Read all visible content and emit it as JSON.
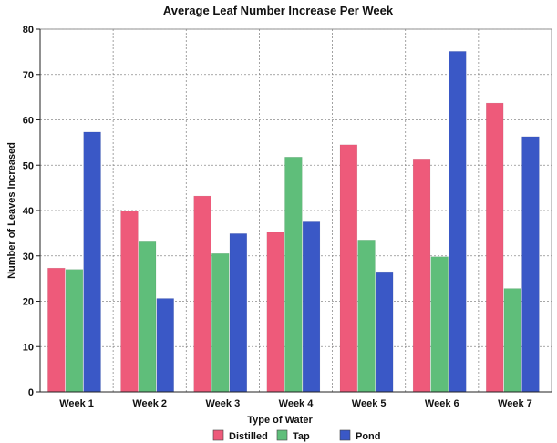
{
  "chart_data": {
    "type": "bar",
    "title": "Average Leaf Number Increase Per Week",
    "xlabel": "Type of Water",
    "ylabel": "Number of Leaves Increased",
    "categories": [
      "Week 1",
      "Week 2",
      "Week 3",
      "Week 4",
      "Week 5",
      "Week 6",
      "Week 7"
    ],
    "series": [
      {
        "name": "Distilled",
        "color": "#ee5a7a",
        "values": [
          27.3,
          39.9,
          43.2,
          35.2,
          54.5,
          51.4,
          63.7
        ]
      },
      {
        "name": "Tap",
        "color": "#5fbe7a",
        "values": [
          27.0,
          33.3,
          30.5,
          51.8,
          33.5,
          29.8,
          22.8
        ]
      },
      {
        "name": "Pond",
        "color": "#3a58c6",
        "values": [
          57.3,
          20.6,
          34.9,
          37.5,
          26.5,
          75.1,
          56.3
        ]
      }
    ],
    "ylim": [
      0,
      80
    ],
    "yticks": [
      0,
      10,
      20,
      30,
      40,
      50,
      60,
      70,
      80
    ],
    "grid": true,
    "legend_position": "bottom"
  }
}
